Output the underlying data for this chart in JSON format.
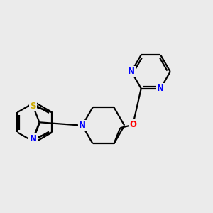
{
  "background_color": "#ebebeb",
  "atom_colors": {
    "C": "#000000",
    "N": "#0000ff",
    "O": "#ff0000",
    "S": "#ccaa00"
  },
  "bond_color": "#000000",
  "bond_width": 1.6,
  "figsize": [
    3.0,
    3.0
  ],
  "dpi": 100,
  "xlim": [
    0.5,
    10.5
  ],
  "ylim": [
    2.0,
    10.5
  ]
}
